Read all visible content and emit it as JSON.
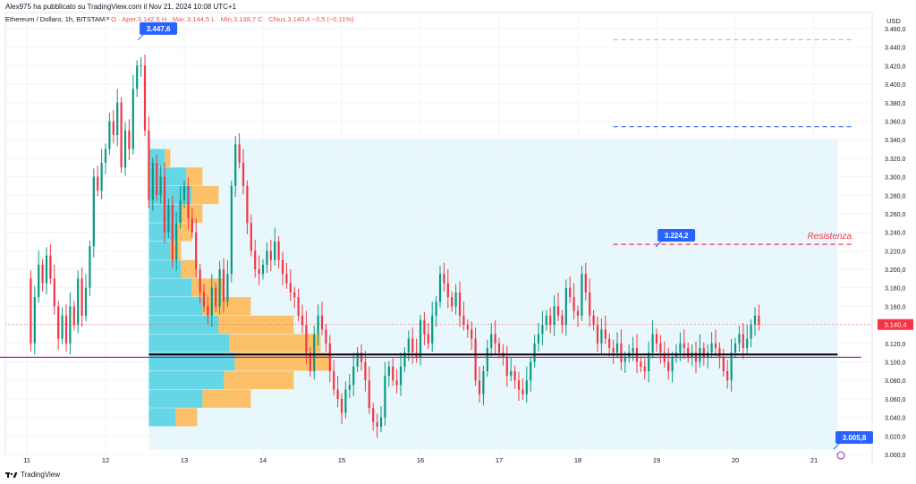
{
  "header": {
    "attribution": "Alex975 ha pubblicato su TradingView.com il Nov 21, 2024 10:08 UTC+1",
    "symbol": "Ethereum / Dollaro, 1h, BITSTAMP",
    "ohlc": "O · Aper.3.142,5  H · Max.3.144,5  L · Min.3.138,7  C · Chius.3.140,4  −3,5 (−0,11%)"
  },
  "price_axis": {
    "unit": "USD"
  },
  "footer": {
    "brand": "TradingView"
  },
  "colors": {
    "up": "#089981",
    "down": "#f23645",
    "vp_up": "#4dd0e1",
    "vp_down": "#ffb74d",
    "value_area": "#e6f6fb",
    "poc": "#000000",
    "purple_line": "#9c27b0",
    "resistance": "#f23645",
    "blue_dashed": "#2962ff",
    "callout": "#2962ff"
  },
  "chart_data": {
    "type": "candlestick",
    "symbol": "ETH/USD",
    "interval": "1h",
    "ylim": [
      3000,
      3460
    ],
    "y_ticks": [
      "3.000,0",
      "3.020,0",
      "3.040,0",
      "3.060,0",
      "3.080,0",
      "3.100,0",
      "3.120,0",
      "3.140,0",
      "3.160,0",
      "3.180,0",
      "3.200,0",
      "3.220,0",
      "3.240,0",
      "3.260,0",
      "3.280,0",
      "3.300,0",
      "3.320,0",
      "3.340,0",
      "3.360,0",
      "3.380,0",
      "3.400,0",
      "3.420,0",
      "3.440,0",
      "3.460,0"
    ],
    "x_ticks": [
      "11",
      "12",
      "13",
      "14",
      "15",
      "16",
      "17",
      "18",
      "19",
      "20",
      "21"
    ],
    "close_path": [
      [
        10.95,
        3190
      ],
      [
        11.05,
        3120
      ],
      [
        11.1,
        3170
      ],
      [
        11.15,
        3205
      ],
      [
        11.2,
        3185
      ],
      [
        11.25,
        3215
      ],
      [
        11.3,
        3190
      ],
      [
        11.35,
        3160
      ],
      [
        11.4,
        3125
      ],
      [
        11.45,
        3150
      ],
      [
        11.5,
        3120
      ],
      [
        11.55,
        3160
      ],
      [
        11.6,
        3140
      ],
      [
        11.65,
        3190
      ],
      [
        11.7,
        3150
      ],
      [
        11.75,
        3180
      ],
      [
        11.8,
        3225
      ],
      [
        11.85,
        3300
      ],
      [
        11.9,
        3285
      ],
      [
        11.95,
        3315
      ],
      [
        12.0,
        3330
      ],
      [
        12.05,
        3360
      ],
      [
        12.1,
        3345
      ],
      [
        12.15,
        3380
      ],
      [
        12.2,
        3310
      ],
      [
        12.25,
        3350
      ],
      [
        12.3,
        3330
      ],
      [
        12.35,
        3395
      ],
      [
        12.4,
        3420
      ],
      [
        12.45,
        3420
      ],
      [
        12.5,
        3350
      ],
      [
        12.55,
        3275
      ],
      [
        12.6,
        3315
      ],
      [
        12.65,
        3280
      ],
      [
        12.7,
        3300
      ],
      [
        12.75,
        3240
      ],
      [
        12.8,
        3270
      ],
      [
        12.85,
        3210
      ],
      [
        12.9,
        3250
      ],
      [
        12.95,
        3275
      ],
      [
        13.0,
        3290
      ],
      [
        13.05,
        3255
      ],
      [
        13.1,
        3240
      ],
      [
        13.15,
        3200
      ],
      [
        13.2,
        3175
      ],
      [
        13.25,
        3160
      ],
      [
        13.3,
        3150
      ],
      [
        13.35,
        3180
      ],
      [
        13.4,
        3160
      ],
      [
        13.45,
        3200
      ],
      [
        13.5,
        3165
      ],
      [
        13.55,
        3195
      ],
      [
        13.6,
        3290
      ],
      [
        13.65,
        3335
      ],
      [
        13.7,
        3315
      ],
      [
        13.75,
        3290
      ],
      [
        13.8,
        3250
      ],
      [
        13.85,
        3220
      ],
      [
        13.9,
        3200
      ],
      [
        13.95,
        3195
      ],
      [
        14.0,
        3205
      ],
      [
        14.05,
        3220
      ],
      [
        14.1,
        3210
      ],
      [
        14.15,
        3230
      ],
      [
        14.2,
        3210
      ],
      [
        14.25,
        3195
      ],
      [
        14.3,
        3185
      ],
      [
        14.35,
        3175
      ],
      [
        14.4,
        3170
      ],
      [
        14.45,
        3150
      ],
      [
        14.5,
        3140
      ],
      [
        14.55,
        3110
      ],
      [
        14.6,
        3090
      ],
      [
        14.65,
        3130
      ],
      [
        14.7,
        3150
      ],
      [
        14.75,
        3135
      ],
      [
        14.8,
        3120
      ],
      [
        14.85,
        3090
      ],
      [
        14.9,
        3070
      ],
      [
        14.95,
        3060
      ],
      [
        15.0,
        3045
      ],
      [
        15.05,
        3070
      ],
      [
        15.1,
        3075
      ],
      [
        15.15,
        3095
      ],
      [
        15.2,
        3110
      ],
      [
        15.25,
        3100
      ],
      [
        15.3,
        3080
      ],
      [
        15.35,
        3050
      ],
      [
        15.4,
        3035
      ],
      [
        15.45,
        3030
      ],
      [
        15.5,
        3040
      ],
      [
        15.55,
        3085
      ],
      [
        15.6,
        3095
      ],
      [
        15.65,
        3080
      ],
      [
        15.7,
        3075
      ],
      [
        15.75,
        3095
      ],
      [
        15.8,
        3110
      ],
      [
        15.85,
        3125
      ],
      [
        15.9,
        3110
      ],
      [
        15.95,
        3105
      ],
      [
        16.0,
        3145
      ],
      [
        16.05,
        3130
      ],
      [
        16.1,
        3120
      ],
      [
        16.15,
        3150
      ],
      [
        16.2,
        3165
      ],
      [
        16.25,
        3195
      ],
      [
        16.3,
        3185
      ],
      [
        16.35,
        3170
      ],
      [
        16.4,
        3160
      ],
      [
        16.45,
        3175
      ],
      [
        16.5,
        3150
      ],
      [
        16.55,
        3140
      ],
      [
        16.6,
        3135
      ],
      [
        16.65,
        3125
      ],
      [
        16.7,
        3080
      ],
      [
        16.75,
        3065
      ],
      [
        16.8,
        3090
      ],
      [
        16.85,
        3115
      ],
      [
        16.9,
        3130
      ],
      [
        16.95,
        3120
      ],
      [
        17.0,
        3110
      ],
      [
        17.05,
        3105
      ],
      [
        17.1,
        3085
      ],
      [
        17.15,
        3090
      ],
      [
        17.2,
        3080
      ],
      [
        17.25,
        3070
      ],
      [
        17.3,
        3065
      ],
      [
        17.35,
        3080
      ],
      [
        17.4,
        3100
      ],
      [
        17.45,
        3120
      ],
      [
        17.5,
        3130
      ],
      [
        17.55,
        3140
      ],
      [
        17.6,
        3150
      ],
      [
        17.65,
        3140
      ],
      [
        17.7,
        3160
      ],
      [
        17.75,
        3150
      ],
      [
        17.8,
        3140
      ],
      [
        17.85,
        3180
      ],
      [
        17.9,
        3170
      ],
      [
        17.95,
        3155
      ],
      [
        18.0,
        3150
      ],
      [
        18.05,
        3195
      ],
      [
        18.1,
        3175
      ],
      [
        18.15,
        3150
      ],
      [
        18.2,
        3140
      ],
      [
        18.25,
        3120
      ],
      [
        18.3,
        3135
      ],
      [
        18.35,
        3125
      ],
      [
        18.4,
        3115
      ],
      [
        18.45,
        3110
      ],
      [
        18.5,
        3120
      ],
      [
        18.55,
        3100
      ],
      [
        18.6,
        3105
      ],
      [
        18.65,
        3110
      ],
      [
        18.7,
        3115
      ],
      [
        18.75,
        3100
      ],
      [
        18.8,
        3095
      ],
      [
        18.85,
        3090
      ],
      [
        18.9,
        3110
      ],
      [
        18.95,
        3130
      ],
      [
        19.0,
        3120
      ],
      [
        19.05,
        3110
      ],
      [
        19.1,
        3100
      ],
      [
        19.15,
        3090
      ],
      [
        19.2,
        3105
      ],
      [
        19.25,
        3110
      ],
      [
        19.3,
        3120
      ],
      [
        19.35,
        3115
      ],
      [
        19.4,
        3105
      ],
      [
        19.45,
        3110
      ],
      [
        19.5,
        3100
      ],
      [
        19.55,
        3115
      ],
      [
        19.6,
        3105
      ],
      [
        19.65,
        3110
      ],
      [
        19.7,
        3120
      ],
      [
        19.75,
        3115
      ],
      [
        19.8,
        3105
      ],
      [
        19.85,
        3090
      ],
      [
        19.9,
        3080
      ],
      [
        19.95,
        3110
      ],
      [
        20.0,
        3120
      ],
      [
        20.05,
        3130
      ],
      [
        20.1,
        3115
      ],
      [
        20.15,
        3125
      ],
      [
        20.2,
        3140
      ],
      [
        20.25,
        3150
      ],
      [
        20.3,
        3140
      ]
    ],
    "candle_width": 0.025,
    "volume_profile_rows": [
      {
        "price": 3320,
        "up": 0.3,
        "down": 0.1
      },
      {
        "price": 3300,
        "up": 0.7,
        "down": 0.3
      },
      {
        "price": 3280,
        "up": 0.8,
        "down": 0.5
      },
      {
        "price": 3260,
        "up": 0.6,
        "down": 0.4
      },
      {
        "price": 3240,
        "up": 0.5,
        "down": 0.3
      },
      {
        "price": 3220,
        "up": 0.4,
        "down": 0.2
      },
      {
        "price": 3200,
        "up": 0.6,
        "down": 0.3
      },
      {
        "price": 3180,
        "up": 0.8,
        "down": 0.6
      },
      {
        "price": 3160,
        "up": 1.0,
        "down": 0.9
      },
      {
        "price": 3140,
        "up": 1.3,
        "down": 1.4
      },
      {
        "price": 3120,
        "up": 1.5,
        "down": 1.7
      },
      {
        "price": 3100,
        "up": 1.6,
        "down": 1.8
      },
      {
        "price": 3080,
        "up": 1.4,
        "down": 1.3
      },
      {
        "price": 3060,
        "up": 1.0,
        "down": 0.9
      },
      {
        "price": 3040,
        "up": 0.5,
        "down": 0.4
      }
    ],
    "value_area": {
      "x_from": 12.55,
      "x_to": 21.3,
      "y_from": 3005,
      "y_to": 3340
    },
    "lines": [
      {
        "name": "point-of-control",
        "y": 3108,
        "x_from": 12.55,
        "x_to": 21.3,
        "style": "solid",
        "color": "#000000"
      },
      {
        "name": "purple-level",
        "y": 3105,
        "x_from": 10.6,
        "x_to": 21.6,
        "style": "solid",
        "color": "#9c27b0"
      },
      {
        "name": "resistance-level",
        "y": 3227,
        "x_from": 18.45,
        "x_to": 21.5,
        "style": "dashed",
        "color": "#f23645",
        "label": "Resistenza"
      },
      {
        "name": "blue-level",
        "y": 3354,
        "x_from": 18.45,
        "x_to": 21.5,
        "style": "dashed",
        "color": "#2962ff"
      },
      {
        "name": "faint-level",
        "y": 3448,
        "x_from": 18.45,
        "x_to": 21.5,
        "style": "dashed",
        "color": "#ef9a9a"
      }
    ],
    "callouts": [
      {
        "label": "3.447,6",
        "x": 12.41,
        "y": 3447.6
      },
      {
        "label": "3.224,2",
        "x": 18.99,
        "y": 3224.2
      },
      {
        "label": "3.005,8",
        "x": 21.25,
        "y": 3005.8
      }
    ],
    "last_price": {
      "label": "3.140,4",
      "value": 3140.4
    }
  }
}
